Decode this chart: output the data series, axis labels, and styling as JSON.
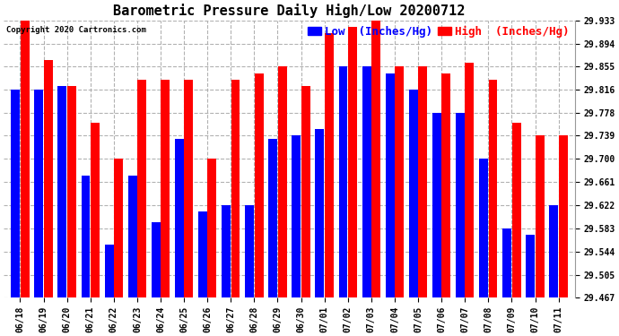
{
  "title": "Barometric Pressure Daily High/Low 20200712",
  "copyright": "Copyright 2020 Cartronics.com",
  "legend_low": "Low  (Inches/Hg)",
  "legend_high": "High  (Inches/Hg)",
  "dates": [
    "06/18",
    "06/19",
    "06/20",
    "06/21",
    "06/22",
    "06/23",
    "06/24",
    "06/25",
    "06/26",
    "06/27",
    "06/28",
    "06/29",
    "06/30",
    "07/01",
    "07/02",
    "07/03",
    "07/04",
    "07/05",
    "07/06",
    "07/07",
    "07/08",
    "07/09",
    "07/10",
    "07/11"
  ],
  "high": [
    29.933,
    29.866,
    29.822,
    29.761,
    29.7,
    29.833,
    29.833,
    29.833,
    29.7,
    29.833,
    29.844,
    29.855,
    29.822,
    29.911,
    29.922,
    29.933,
    29.855,
    29.855,
    29.844,
    29.861,
    29.833,
    29.761,
    29.739,
    29.739
  ],
  "low": [
    29.816,
    29.816,
    29.822,
    29.672,
    29.555,
    29.672,
    29.594,
    29.733,
    29.611,
    29.622,
    29.622,
    29.733,
    29.739,
    29.75,
    29.855,
    29.855,
    29.844,
    29.816,
    29.778,
    29.778,
    29.7,
    29.583,
    29.572,
    29.622
  ],
  "ylim_min": 29.467,
  "ylim_max": 29.933,
  "yticks": [
    29.467,
    29.505,
    29.544,
    29.583,
    29.622,
    29.661,
    29.7,
    29.739,
    29.778,
    29.816,
    29.855,
    29.894,
    29.933
  ],
  "low_color": "#0000ff",
  "high_color": "#ff0000",
  "bg_color": "#ffffff",
  "grid_color": "#aaaaaa",
  "title_fontsize": 11,
  "tick_fontsize": 7,
  "legend_fontsize": 9,
  "figwidth": 6.9,
  "figheight": 3.75,
  "dpi": 100
}
